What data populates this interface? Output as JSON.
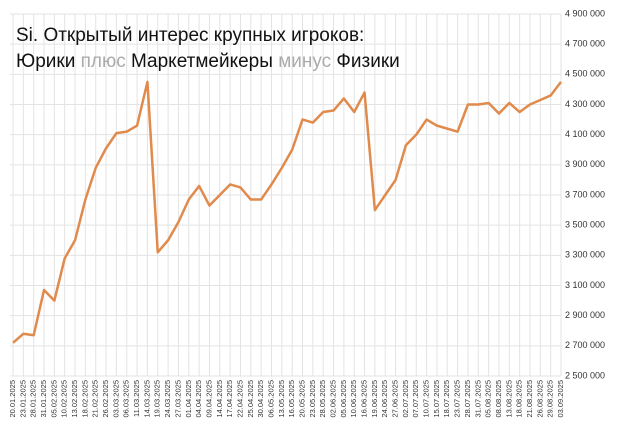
{
  "chart_data": {
    "type": "line",
    "title_lines": [
      [
        {
          "text": "Si. Открытый интерес крупных игроков:",
          "color": "#111111"
        }
      ],
      [
        {
          "text": "Юрики ",
          "color": "#111111"
        },
        {
          "text": "плюс",
          "color": "#aaaaaa"
        },
        {
          "text": " Маркетмейкеры ",
          "color": "#111111"
        },
        {
          "text": "минус",
          "color": "#aaaaaa"
        },
        {
          "text": " Физики",
          "color": "#111111"
        }
      ]
    ],
    "categories": [
      "20.01.2025",
      "23.01.2025",
      "28.01.2025",
      "31.01.2025",
      "05.02.2025",
      "10.02.2025",
      "13.02.2025",
      "18.02.2025",
      "21.02.2025",
      "26.02.2025",
      "03.03.2025",
      "06.03.2025",
      "11.03.2025",
      "14.03.2025",
      "19.03.2025",
      "24.03.2025",
      "27.03.2025",
      "01.04.2025",
      "04.04.2025",
      "09.04.2025",
      "14.04.2025",
      "17.04.2025",
      "22.04.2025",
      "25.04.2025",
      "30.04.2025",
      "06.05.2025",
      "13.05.2025",
      "16.05.2025",
      "20.05.2025",
      "23.05.2025",
      "28.05.2025",
      "02.06.2025",
      "05.06.2025",
      "10.06.2025",
      "16.06.2025",
      "19.06.2025",
      "24.06.2025",
      "27.06.2025",
      "02.07.2025",
      "07.07.2025",
      "10.07.2025",
      "15.07.2025",
      "18.07.2025",
      "23.07.2025",
      "28.07.2025",
      "31.07.2025",
      "05.08.2025",
      "08.08.2025",
      "13.08.2025",
      "18.08.2025",
      "21.08.2025",
      "26.08.2025",
      "29.08.2025",
      "03.09.2025"
    ],
    "series": [
      {
        "color": "#e08a4c",
        "values": [
          2720000,
          2780000,
          2770000,
          3070000,
          3000000,
          3280000,
          3400000,
          3670000,
          3880000,
          4010000,
          4110000,
          4120000,
          4160000,
          4450000,
          3320000,
          3400000,
          3520000,
          3670000,
          3760000,
          3630000,
          3700000,
          3770000,
          3750000,
          3670000,
          3670000,
          3770000,
          3880000,
          4000000,
          4200000,
          4180000,
          4250000,
          4260000,
          4340000,
          4250000,
          4380000,
          3600000,
          3700000,
          3800000,
          4030000,
          4100000,
          4200000,
          4160000,
          4140000,
          4120000,
          4300000,
          4300000,
          4310000,
          4240000,
          4310000,
          4250000,
          4300000,
          4330000,
          4360000,
          4450000
        ]
      }
    ],
    "ylim": [
      2500000,
      4900000
    ],
    "yticks": [
      {
        "value": 2500000,
        "label": "2 500 000"
      },
      {
        "value": 2700000,
        "label": "2 700 000"
      },
      {
        "value": 2900000,
        "label": "2 900 000"
      },
      {
        "value": 3100000,
        "label": "3 100 000"
      },
      {
        "value": 3300000,
        "label": "3 300 000"
      },
      {
        "value": 3500000,
        "label": "3 500 000"
      },
      {
        "value": 3700000,
        "label": "3 700 000"
      },
      {
        "value": 3900000,
        "label": "3 900 000"
      },
      {
        "value": 4100000,
        "label": "4 100 000"
      },
      {
        "value": 4300000,
        "label": "4 300 000"
      },
      {
        "value": 4500000,
        "label": "4 500 000"
      },
      {
        "value": 4700000,
        "label": "4 700 000"
      },
      {
        "value": 4900000,
        "label": "4 900 000"
      }
    ],
    "grid": true
  }
}
